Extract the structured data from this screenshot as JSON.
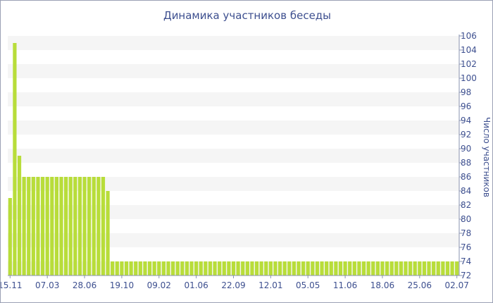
{
  "chart_data": {
    "type": "bar",
    "title": "Динамика участников беседы",
    "ylabel": "Число участников",
    "xlabel": "",
    "ylim": [
      72,
      106
    ],
    "yticks": [
      72,
      74,
      76,
      78,
      80,
      82,
      84,
      86,
      88,
      90,
      92,
      94,
      96,
      98,
      100,
      102,
      104,
      106
    ],
    "xtick_labels": [
      {
        "index": 0,
        "label": "15.11"
      },
      {
        "index": 8,
        "label": "07.03"
      },
      {
        "index": 16,
        "label": "28.06"
      },
      {
        "index": 24,
        "label": "19.10"
      },
      {
        "index": 32,
        "label": "09.02"
      },
      {
        "index": 40,
        "label": "01.06"
      },
      {
        "index": 48,
        "label": "22.09"
      },
      {
        "index": 56,
        "label": "12.01"
      },
      {
        "index": 64,
        "label": "05.05"
      },
      {
        "index": 72,
        "label": "11.06"
      },
      {
        "index": 80,
        "label": "18.06"
      },
      {
        "index": 88,
        "label": "25.06"
      },
      {
        "index": 96,
        "label": "02.07"
      }
    ],
    "values": [
      83,
      105,
      89,
      86,
      86,
      86,
      86,
      86,
      86,
      86,
      86,
      86,
      86,
      86,
      86,
      86,
      86,
      86,
      86,
      86,
      86,
      84,
      74,
      74,
      74,
      74,
      74,
      74,
      74,
      74,
      74,
      74,
      74,
      74,
      74,
      74,
      74,
      74,
      74,
      74,
      74,
      74,
      74,
      74,
      74,
      74,
      74,
      74,
      74,
      74,
      74,
      74,
      74,
      74,
      74,
      74,
      74,
      74,
      74,
      74,
      74,
      74,
      74,
      74,
      74,
      74,
      74,
      74,
      74,
      74,
      74,
      74,
      74,
      74,
      74,
      74,
      74,
      74,
      74,
      74,
      74,
      74,
      74,
      74,
      74,
      74,
      74,
      74,
      74,
      74,
      74,
      74,
      74,
      74,
      74,
      74,
      74
    ],
    "axis_side": "right",
    "grid": "alternating horizontal bands",
    "bar_color": "#b8dd3a",
    "band_color": "#f5f5f5",
    "text_color": "#3d4f8f"
  }
}
